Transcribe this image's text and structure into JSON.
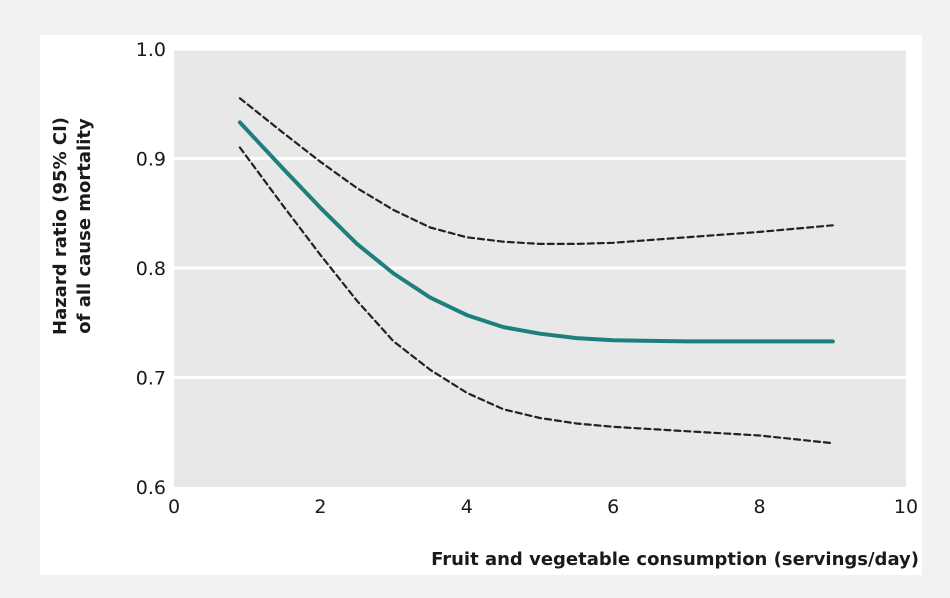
{
  "chart_data": {
    "type": "line",
    "xlabel": "Fruit and vegetable consumption (servings/day)",
    "ylabel_lines": [
      "Hazard ratio (95% CI)",
      "of all cause mortality"
    ],
    "xlim": [
      0,
      10
    ],
    "ylim": [
      0.6,
      1.0
    ],
    "xticks": [
      0,
      2,
      4,
      6,
      8,
      10
    ],
    "yticks": [
      0.6,
      0.7,
      0.8,
      0.9,
      1.0
    ],
    "ytick_labels": [
      "0.6",
      "0.7",
      "0.8",
      "0.9",
      "1.0"
    ],
    "grid": true,
    "colors": {
      "panel": "#e8e8e8",
      "grid": "#ffffff",
      "estimate": "#1e7f7d",
      "ci": "#222222"
    },
    "series": [
      {
        "style": "solid",
        "x": [
          0.9,
          1.5,
          2,
          2.5,
          3,
          3.5,
          4,
          4.5,
          5,
          5.5,
          6,
          7,
          8,
          9
        ],
        "y": [
          0.933,
          0.89,
          0.855,
          0.822,
          0.795,
          0.773,
          0.757,
          0.746,
          0.74,
          0.736,
          0.734,
          0.733,
          0.733,
          0.733
        ]
      },
      {
        "style": "dashed",
        "x": [
          0.9,
          1.5,
          2,
          2.5,
          3,
          3.5,
          4,
          4.5,
          5,
          5.5,
          6,
          7,
          8,
          9
        ],
        "y": [
          0.955,
          0.923,
          0.897,
          0.873,
          0.853,
          0.837,
          0.828,
          0.824,
          0.822,
          0.822,
          0.823,
          0.828,
          0.833,
          0.839
        ]
      },
      {
        "style": "dashed",
        "x": [
          0.9,
          1.5,
          2,
          2.5,
          3,
          3.5,
          4,
          4.5,
          5,
          5.5,
          6,
          7,
          8,
          9
        ],
        "y": [
          0.91,
          0.856,
          0.812,
          0.77,
          0.733,
          0.707,
          0.686,
          0.671,
          0.663,
          0.658,
          0.655,
          0.651,
          0.647,
          0.64
        ]
      }
    ]
  }
}
